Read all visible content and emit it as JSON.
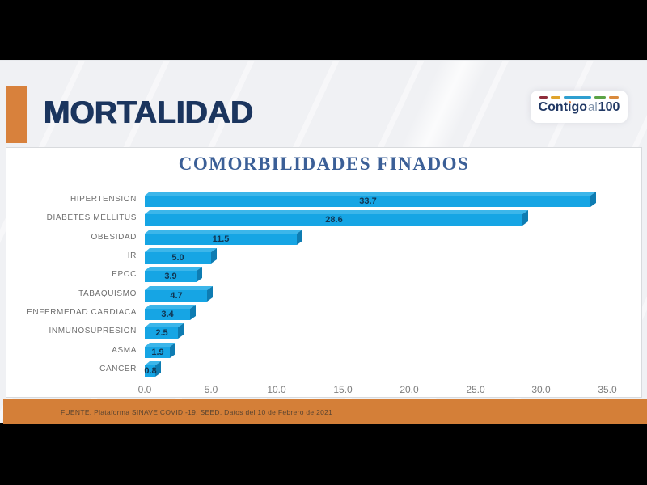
{
  "slide": {
    "title": "MORTALIDAD",
    "logo": {
      "word_main": "Contigo",
      "word_mid": "al",
      "word_num": "100"
    },
    "footer_source": "FUENTE. Plataforma SINAVE COVID -19, SEED. Datos del 10 de Febrero de 2021"
  },
  "chart_data": {
    "type": "bar",
    "orientation": "horizontal",
    "title": "COMORBILIDADES FINADOS",
    "categories": [
      "HIPERTENSION",
      "DIABETES MELLITUS",
      "OBESIDAD",
      "IR",
      "EPOC",
      "TABAQUISMO",
      "ENFERMEDAD CARDIACA",
      "INMUNOSUPRESION",
      "ASMA",
      "CANCER"
    ],
    "values": [
      33.7,
      28.6,
      11.5,
      5.0,
      3.9,
      4.7,
      3.4,
      2.5,
      1.9,
      0.8
    ],
    "value_labels": [
      "33.7",
      "28.6",
      "11.5",
      "5.0",
      "3.9",
      "4.7",
      "3.4",
      "2.5",
      "1.9",
      "0.8"
    ],
    "xlabel": "",
    "ylabel": "",
    "xlim": [
      0,
      35
    ],
    "xticks": [
      0,
      5,
      10,
      15,
      20,
      25,
      30,
      35
    ],
    "xtick_labels": [
      "0.0",
      "5.0",
      "10.0",
      "15.0",
      "20.0",
      "25.0",
      "30.0",
      "35.0"
    ],
    "grid": false,
    "legend": false,
    "bar_style": "3d-cylinderless-extrude"
  },
  "colors": {
    "frame_black": "#000000",
    "slide_bg": "#f0f1f4",
    "panel_bg": "#ffffff",
    "panel_border": "#d8dadd",
    "accent_orange": "#d8813c",
    "footer_orange": "#d47f38",
    "title_navy": "#1b355e",
    "chart_title_blue": "#3b5f97",
    "bar_face": "#16a5e4",
    "bar_top": "#3cb6ea",
    "bar_side": "#0e7cb2",
    "value_text": "#113450",
    "category_text": "#6e6e6e",
    "tick_text": "#7d7d7d",
    "footer_text": "#5a4430",
    "logo_navy": "#203864",
    "logo_light": "#8496ad",
    "logo_dot": "#e07b39",
    "logo_dashes": [
      "#8f2d3a",
      "#e0a42c",
      "#2f9fd0",
      "#5ba345",
      "#d98a3d"
    ]
  }
}
